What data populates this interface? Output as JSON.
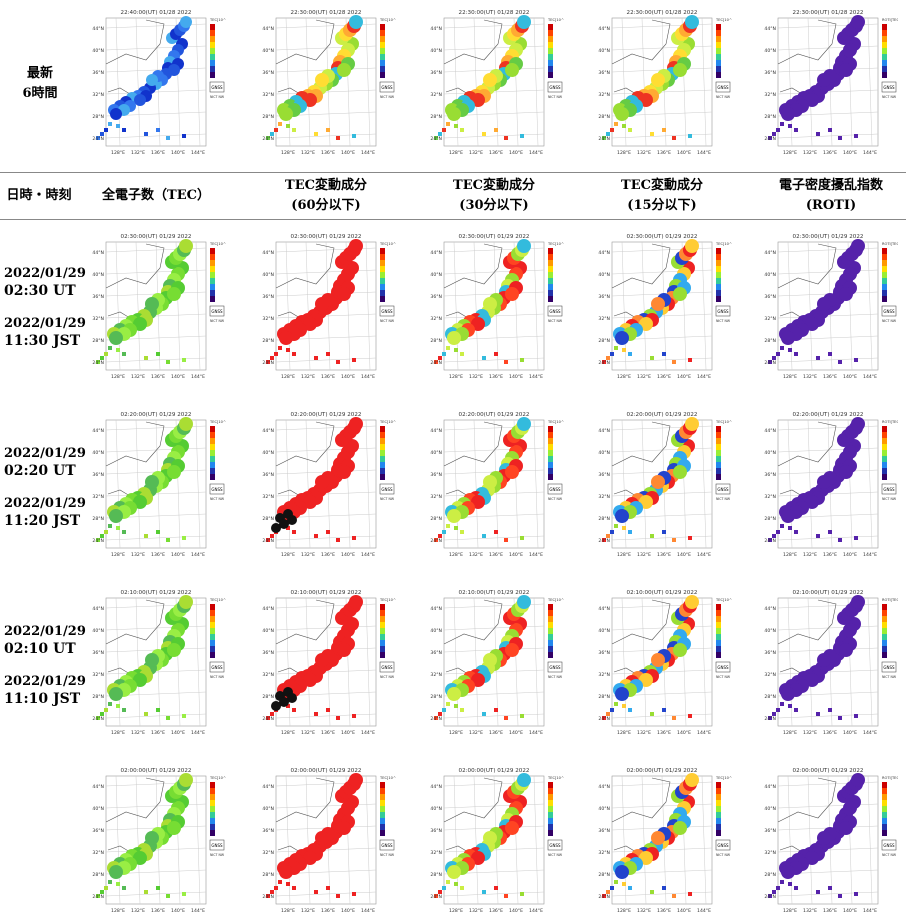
{
  "header": {
    "latest": [
      "最新",
      "6時間"
    ],
    "col_datetime": "日時・時刻",
    "columns": [
      {
        "l1": "全電子数（TEC）",
        "l2": ""
      },
      {
        "l1": "TEC変動成分",
        "l2": "(60分以下)"
      },
      {
        "l1": "TEC変動成分",
        "l2": "(30分以下)"
      },
      {
        "l1": "TEC変動成分",
        "l2": "(15分以下)"
      },
      {
        "l1": "電子密度擾乱指数",
        "l2": "(ROTI)"
      }
    ]
  },
  "top_row": {
    "titles": [
      "22:40:00(UT) 01/28 2022",
      "22:30:00(UT) 01/28 2022",
      "22:30:00(UT) 01/28 2022",
      "22:30:00(UT) 01/28 2022",
      "22:30:00(UT) 01/28 2022"
    ]
  },
  "rows": [
    {
      "date_ut": "2022/01/29",
      "time_ut": "02:30 UT",
      "date_jst": "2022/01/29",
      "time_jst": "11:30 JST",
      "titles": [
        "02:30:00(UT) 01/29 2022",
        "02:30:00(UT) 01/29 2022",
        "02:30:00(UT) 01/29 2022",
        "02:30:00(UT) 01/29 2022",
        "02:30:00(UT) 01/29 2022"
      ]
    },
    {
      "date_ut": "2022/01/29",
      "time_ut": "02:20 UT",
      "date_jst": "2022/01/29",
      "time_jst": "11:20 JST",
      "titles": [
        "02:20:00(UT) 01/29 2022",
        "02:20:00(UT) 01/29 2022",
        "02:20:00(UT) 01/29 2022",
        "02:20:00(UT) 01/29 2022",
        "02:20:00(UT) 01/29 2022"
      ]
    },
    {
      "date_ut": "2022/01/29",
      "time_ut": "02:10 UT",
      "date_jst": "2022/01/29",
      "time_jst": "11:10 JST",
      "titles": [
        "02:10:00(UT) 01/29 2022",
        "02:10:00(UT) 01/29 2022",
        "02:10:00(UT) 01/29 2022",
        "02:10:00(UT) 01/29 2022",
        "02:10:00(UT) 01/29 2022"
      ]
    },
    {
      "titles": [
        "02:00:00(UT) 01/29 2022",
        "02:00:00(UT) 01/29 2022",
        "02:00:00(UT) 01/29 2022",
        "02:00:00(UT) 01/29 2022",
        "02:00:00(UT) 01/29 2022"
      ]
    }
  ],
  "map": {
    "lat_labels": [
      "44°N",
      "40°N",
      "36°N",
      "32°N",
      "28°N",
      "24°N"
    ],
    "lon_labels": [
      "128°E",
      "132°E",
      "136°E",
      "140°E",
      "144°E"
    ],
    "legend_label": "TEC[10^16/m^2]",
    "roti_legend_label": "ROTI[TECU/min]",
    "badge": "GNSS",
    "badge_sub": "NICT NW"
  },
  "colors": {
    "tec_top": "#2255dd",
    "tec_rows": "#66dd33",
    "dtec_warm": "#ee3322",
    "dtec_mix": "#99dd33",
    "roti": "#5522aa",
    "black_patch": "#111111"
  }
}
